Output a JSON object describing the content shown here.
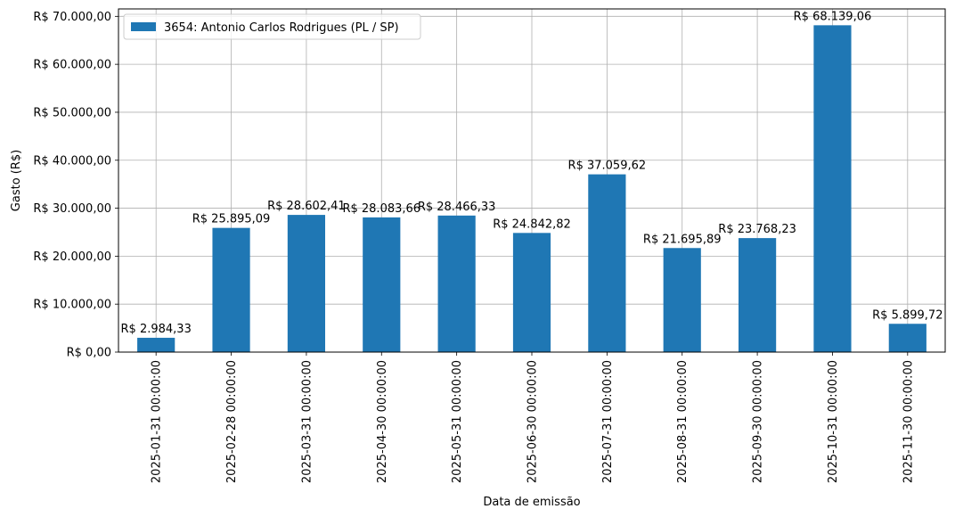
{
  "chart_data": {
    "type": "bar",
    "categories": [
      "2025-01-31 00:00:00",
      "2025-02-28 00:00:00",
      "2025-03-31 00:00:00",
      "2025-04-30 00:00:00",
      "2025-05-31 00:00:00",
      "2025-06-30 00:00:00",
      "2025-07-31 00:00:00",
      "2025-08-31 00:00:00",
      "2025-09-30 00:00:00",
      "2025-10-31 00:00:00",
      "2025-11-30 00:00:00"
    ],
    "series": [
      {
        "name": "3654: Antonio Carlos Rodrigues (PL / SP)",
        "color": "#1f77b4",
        "values": [
          2984.33,
          25895.09,
          28602.41,
          28083.66,
          28466.33,
          24842.82,
          37059.62,
          21695.89,
          23768.23,
          68139.06,
          5899.72
        ],
        "labels": [
          "R$ 2.984,33",
          "R$ 25.895,09",
          "R$ 28.602,41",
          "R$ 28.083,66",
          "R$ 28.466,33",
          "R$ 24.842,82",
          "R$ 37.059,62",
          "R$ 21.695,89",
          "R$ 23.768,23",
          "R$ 68.139,06",
          "R$ 5.899,72"
        ]
      }
    ],
    "xlabel": "Data de emissão",
    "ylabel": "Gasto (R$)",
    "ylim": [
      0,
      71548.01
    ],
    "yticks": [
      0,
      10000,
      20000,
      30000,
      40000,
      50000,
      60000,
      70000
    ],
    "ytick_labels": [
      "R$ 0,00",
      "R$ 10.000,00",
      "R$ 20.000,00",
      "R$ 30.000,00",
      "R$ 40.000,00",
      "R$ 50.000,00",
      "R$ 60.000,00",
      "R$ 70.000,00"
    ],
    "grid": true,
    "legend_position": "top-left"
  }
}
